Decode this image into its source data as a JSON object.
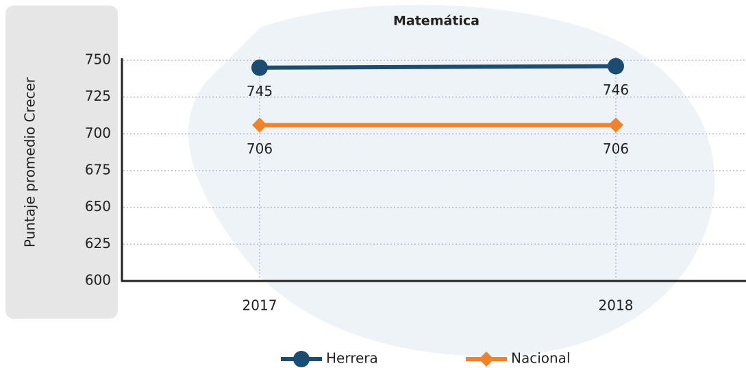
{
  "chart_data": {
    "type": "line",
    "title": "Matemática",
    "ylabel": "Puntaje promedio Crecer",
    "categories": [
      "2017",
      "2018"
    ],
    "series": [
      {
        "name": "Herrera",
        "color": "#1b4c72",
        "marker": "circle",
        "values": [
          745,
          746
        ]
      },
      {
        "name": "Nacional",
        "color": "#f28227",
        "marker": "diamond",
        "values": [
          706,
          706
        ]
      }
    ],
    "ylim": [
      600,
      750
    ],
    "yticks": [
      600,
      625,
      650,
      675,
      700,
      725,
      750
    ],
    "grid": true,
    "legend": "bottom"
  }
}
